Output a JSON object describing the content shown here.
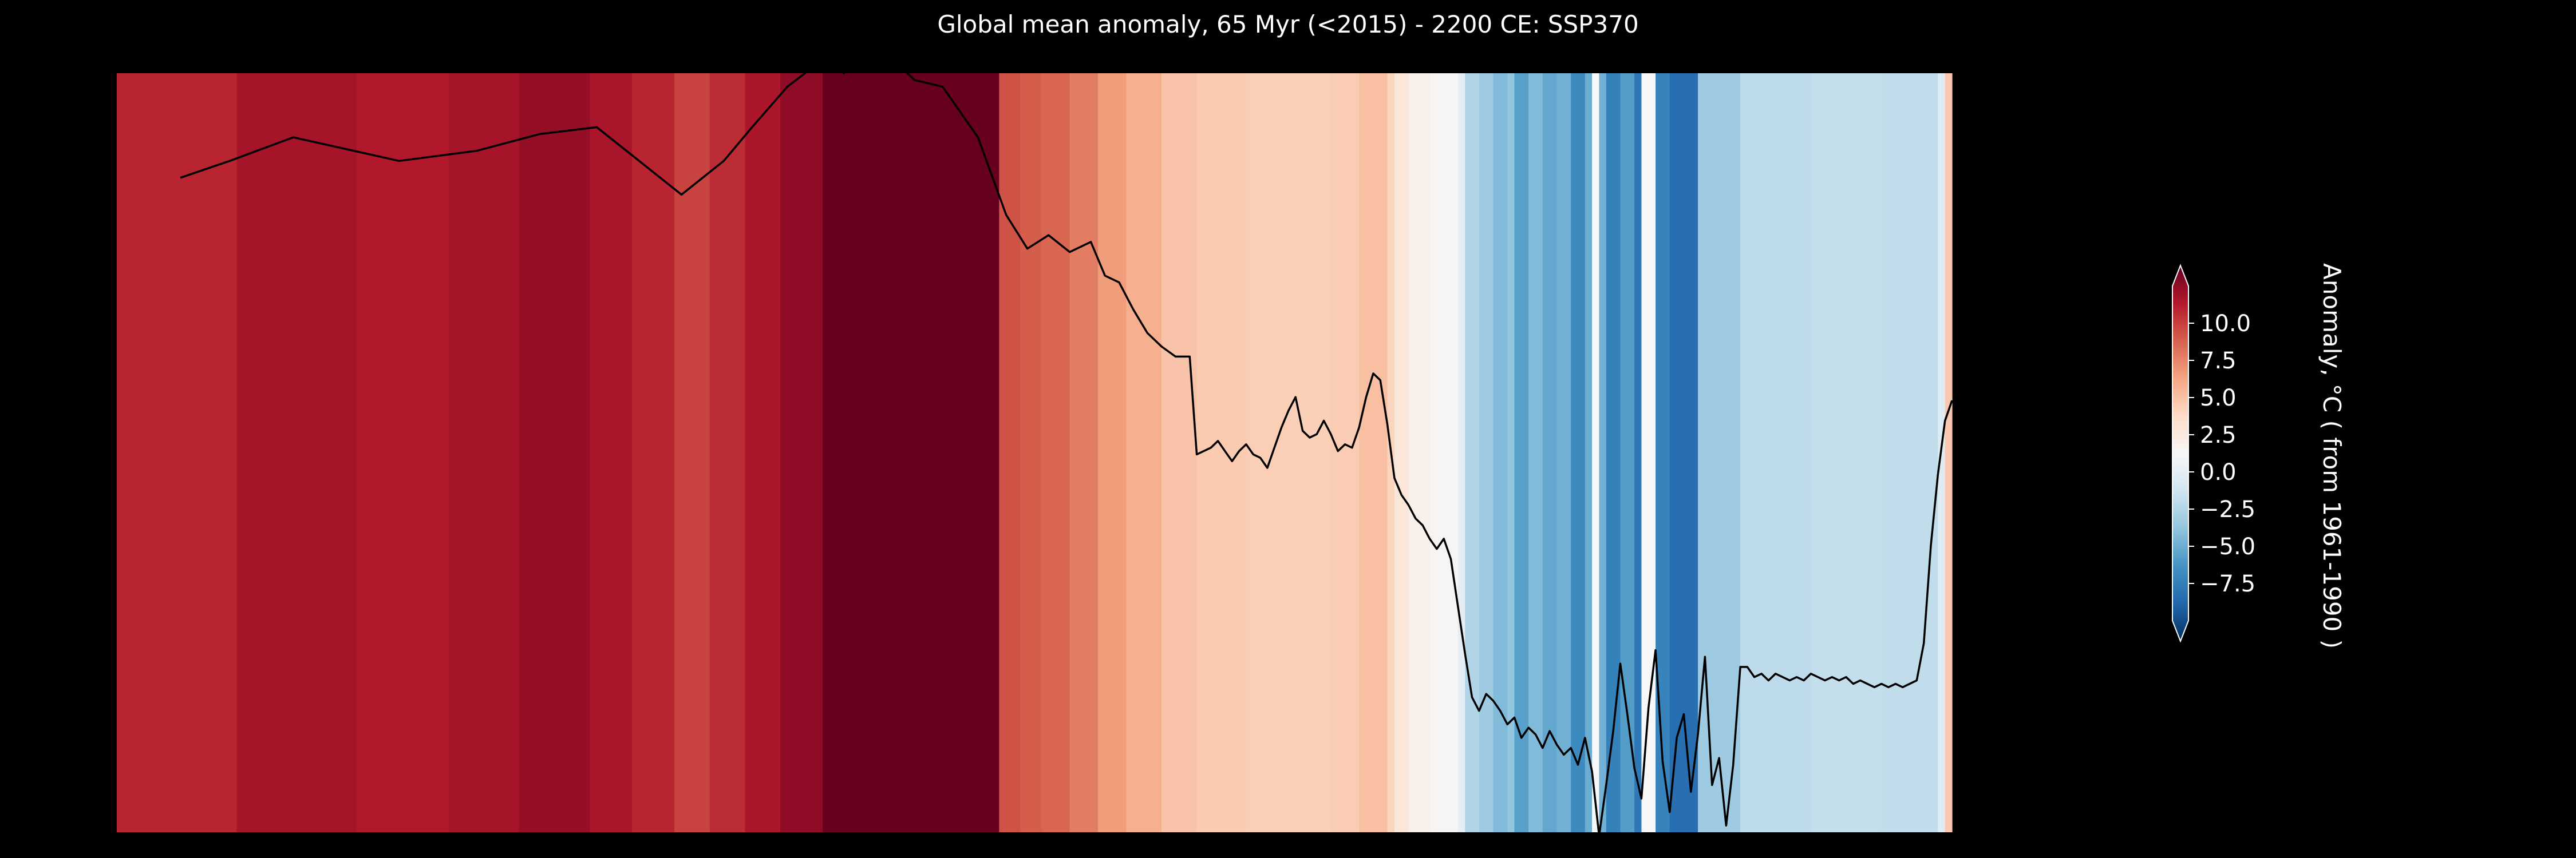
{
  "chart_data": {
    "type": "line",
    "title": "Global mean anomaly, 65 Myr (<2015) - 2200 CE: SSP370",
    "xlabel": "",
    "ylabel": "",
    "colormap": "RdBu_r",
    "colorbar": {
      "label": "Anomaly, °C ( from 1961-1990 )",
      "range": [
        -10.0,
        12.5
      ],
      "ticks": [
        -7.5,
        -5.0,
        -2.5,
        0.0,
        2.5,
        5.0,
        7.5,
        10.0
      ],
      "tick_labels": [
        "−7.5",
        "−5.0",
        "−2.5",
        "0.0",
        "2.5",
        "5.0",
        "7.5",
        "10.0"
      ],
      "extend": "both"
    },
    "x_index_range": [
      0,
      260
    ],
    "ylim": [
      -10.0,
      12.5
    ],
    "series": [
      {
        "x": [
          9,
          16,
          25,
          40,
          51,
          60,
          68,
          74,
          80,
          86,
          90,
          95,
          100,
          103,
          106,
          109,
          113,
          117,
          122,
          126,
          129,
          132,
          135,
          138,
          140,
          142,
          144,
          146,
          148,
          150,
          152,
          153,
          154,
          155,
          156,
          157,
          158,
          159,
          160,
          161,
          162,
          163,
          164,
          165,
          166,
          167,
          168,
          169,
          170,
          171,
          172,
          173,
          174,
          175,
          176,
          177,
          178,
          179,
          180,
          181,
          182,
          183,
          184,
          185,
          186,
          187,
          188,
          189,
          190,
          191,
          192,
          193,
          194,
          195,
          196,
          197,
          198,
          199,
          200,
          201,
          202,
          203,
          204,
          205,
          206,
          207,
          208,
          209,
          210,
          211,
          212,
          213,
          214,
          215,
          216,
          217,
          218,
          219,
          220,
          221,
          222,
          223,
          224,
          225,
          226,
          227,
          228,
          229,
          230,
          231,
          232,
          233,
          234,
          235,
          236,
          237,
          238,
          239,
          240,
          241,
          242,
          243,
          244,
          245,
          246,
          247,
          248,
          249,
          250,
          251,
          252,
          253,
          254,
          255,
          256,
          257,
          258,
          259,
          260
        ],
        "values": [
          9.4,
          9.9,
          10.6,
          9.9,
          10.2,
          10.7,
          10.9,
          9.9,
          8.9,
          9.9,
          10.9,
          12.1,
          12.9,
          12.5,
          13.0,
          13.1,
          12.3,
          12.1,
          10.6,
          8.3,
          7.3,
          7.7,
          7.2,
          7.5,
          6.5,
          6.3,
          5.5,
          4.8,
          4.4,
          4.1,
          4.1,
          1.2,
          1.3,
          1.4,
          1.6,
          1.3,
          1.0,
          1.3,
          1.5,
          1.2,
          1.1,
          0.8,
          1.4,
          2.0,
          2.5,
          2.9,
          1.9,
          1.7,
          1.8,
          2.2,
          1.8,
          1.3,
          1.5,
          1.4,
          2.0,
          2.9,
          3.6,
          3.4,
          2.1,
          0.5,
          0.0,
          -0.3,
          -0.7,
          -0.9,
          -1.3,
          -1.6,
          -1.3,
          -1.9,
          -3.3,
          -4.7,
          -6.0,
          -6.4,
          -5.9,
          -6.1,
          -6.4,
          -6.8,
          -6.6,
          -7.2,
          -6.9,
          -7.1,
          -7.5,
          -7.0,
          -7.4,
          -7.7,
          -7.5,
          -8.0,
          -7.2,
          -8.2,
          -10.1,
          -8.6,
          -7.0,
          -5.0,
          -6.5,
          -8.1,
          -9.0,
          -6.3,
          -4.6,
          -7.9,
          -9.4,
          -7.2,
          -6.5,
          -8.8,
          -7.1,
          -4.8,
          -8.6,
          -7.8,
          -9.8,
          -8.0,
          -5.1,
          -5.1,
          -5.4,
          -5.3,
          -5.5,
          -5.3,
          -5.4,
          -5.5,
          -5.4,
          -5.5,
          -5.3,
          -5.4,
          -5.5,
          -5.4,
          -5.5,
          -5.4,
          -5.6,
          -5.5,
          -5.6,
          -5.7,
          -5.6,
          -5.7,
          -5.6,
          -5.7,
          -5.6,
          -5.5,
          -4.4,
          -1.5,
          0.6,
          2.2,
          2.8
        ]
      }
    ],
    "stripes": {
      "breaks": [
        0,
        17,
        34,
        47,
        57,
        67,
        73,
        79,
        84,
        89,
        94,
        100,
        110,
        125,
        128,
        131,
        135,
        139,
        143,
        148,
        153,
        160,
        166,
        172,
        176,
        180,
        181,
        183,
        186,
        190,
        191,
        193,
        195,
        197,
        198,
        200,
        202,
        204,
        206,
        208,
        209,
        210,
        211,
        213,
        215,
        216,
        218,
        220,
        224,
        230,
        240,
        250,
        258,
        259,
        260
      ],
      "values": [
        9.6,
        10.4,
        10.0,
        10.4,
        11.0,
        10.3,
        9.6,
        8.5,
        9.3,
        10.2,
        11.2,
        12.5,
        13.5,
        8.0,
        7.6,
        7.3,
        6.5,
        5.3,
        4.5,
        3.6,
        3.3,
        3.1,
        3.0,
        3.2,
        3.8,
        2.8,
        1.5,
        0.6,
        0.2,
        -1.0,
        -3.0,
        -3.6,
        -4.4,
        -4.0,
        -5.5,
        -4.4,
        -5.2,
        -4.8,
        -6.4,
        -5.0,
        0.0,
        -4.8,
        -6.8,
        -5.6,
        -7.2,
        0.0,
        -6.7,
        -7.6,
        -3.6,
        -2.6,
        -2.4,
        -2.5,
        -1.2,
        3.4,
        5.2
      ]
    }
  }
}
